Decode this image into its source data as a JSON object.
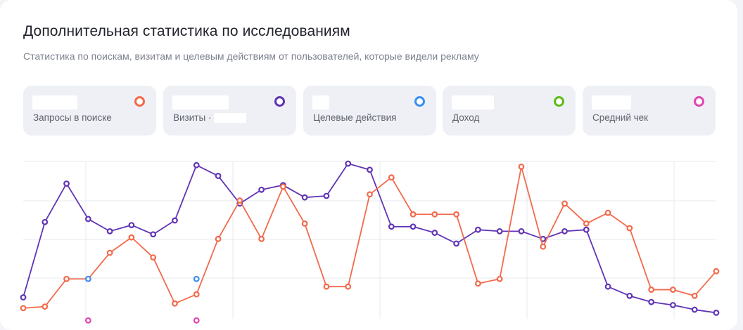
{
  "header": {
    "title": "Дополнительная статистика по исследованиям",
    "subtitle": "Статистика по поискам, визитам и целевым действиям от пользователей, которые видели рекламу"
  },
  "metrics": [
    {
      "id": "searches",
      "label": "Запросы в поиске",
      "color": "#f26a4b"
    },
    {
      "id": "visits",
      "label": "Визиты ·",
      "color": "#6035b5"
    },
    {
      "id": "goals",
      "label": "Целевые действия",
      "color": "#3b8ff5"
    },
    {
      "id": "revenue",
      "label": "Доход",
      "color": "#5bbd14"
    },
    {
      "id": "avg_check",
      "label": "Средний чек",
      "color": "#e045b0"
    }
  ],
  "chart_data": {
    "type": "line",
    "x_count": 34,
    "grid": true,
    "y_range": [
      0,
      100
    ],
    "series": [
      {
        "id": "visits",
        "color": "#6035b5",
        "values": [
          13,
          62,
          87,
          64,
          56,
          60,
          54,
          63,
          99,
          92,
          74,
          83,
          86,
          78,
          79,
          100,
          96,
          59,
          59,
          55,
          48,
          57,
          56,
          56,
          51,
          56,
          57,
          20,
          14,
          10,
          8,
          5,
          3
        ]
      },
      {
        "id": "searches",
        "color": "#f26a4b",
        "values": [
          6,
          7,
          25,
          25,
          42,
          52,
          39,
          9,
          15,
          51,
          76,
          51,
          85,
          61,
          20,
          20,
          80,
          91,
          67,
          67,
          67,
          22,
          25,
          98,
          46,
          74,
          61,
          68,
          58,
          18,
          18,
          14,
          30
        ]
      },
      {
        "id": "goals",
        "color": "#3b8ff5",
        "points": [
          [
            3,
            25
          ],
          [
            8,
            25
          ]
        ]
      },
      {
        "id": "avg_check",
        "color": "#e045b0",
        "points": [
          [
            3,
            -2
          ],
          [
            8,
            -2
          ]
        ]
      }
    ]
  }
}
